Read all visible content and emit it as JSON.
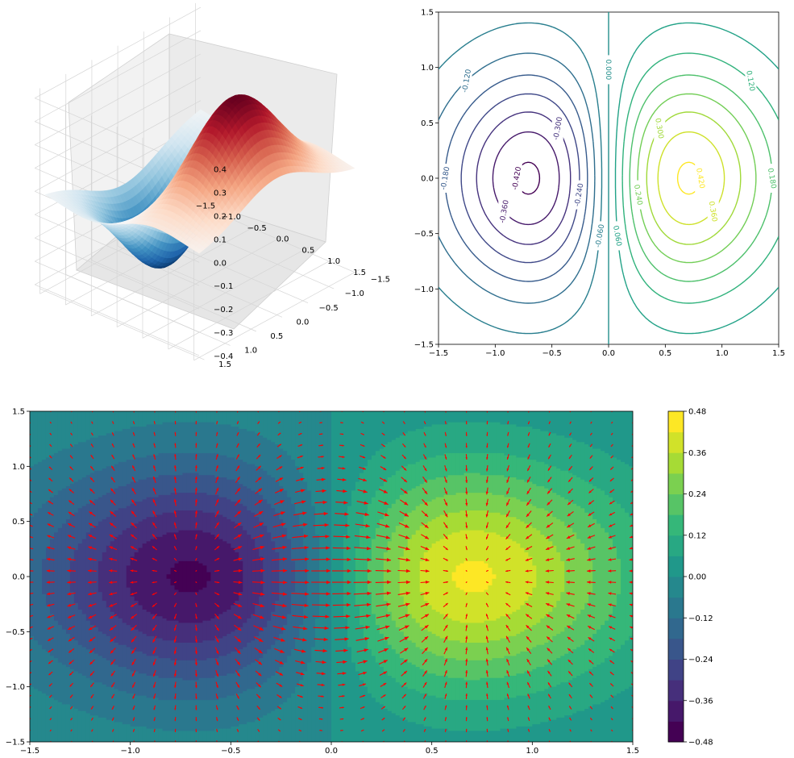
{
  "chart_data": [
    {
      "type": "surface3d",
      "title": "",
      "function": "z = x * exp(-x^2 - y^2)",
      "colormap": "RdBu_r",
      "x_ticks": [
        "−1.5",
        "−1.0",
        "−0.5",
        "0.0",
        "0.5",
        "1.0",
        "1.5"
      ],
      "y_ticks": [
        "−1.5",
        "−1.0",
        "−0.5",
        "0.0",
        "0.5",
        "1.0",
        "1.5"
      ],
      "z_ticks": [
        "−0.4",
        "−0.3",
        "−0.2",
        "−0.1",
        "0.0",
        "0.1",
        "0.2",
        "0.3",
        "0.4"
      ],
      "xlim": [
        -1.5,
        1.5
      ],
      "ylim": [
        -1.5,
        1.5
      ],
      "zlim": [
        -0.43,
        0.43
      ],
      "grid": true
    },
    {
      "type": "contour",
      "title": "",
      "function": "z = x * exp(-x^2 - y^2)",
      "colormap": "viridis",
      "levels": [
        -0.42,
        -0.36,
        -0.3,
        -0.24,
        -0.18,
        -0.12,
        -0.06,
        0.0,
        0.06,
        0.12,
        0.18,
        0.24,
        0.3,
        0.36,
        0.42
      ],
      "inline_labels": [
        "-0.420",
        "-0.360",
        "-0.300",
        "-0.240",
        "-0.180",
        "-0.120",
        "-0.060",
        "0.000",
        "0.060",
        "0.120",
        "0.180",
        "0.240",
        "0.300",
        "0.360",
        "0.420"
      ],
      "x_ticks": [
        "−1.5",
        "−1.0",
        "−0.5",
        "0.0",
        "0.5",
        "1.0",
        "1.5"
      ],
      "y_ticks": [
        "−1.5",
        "−1.0",
        "−0.5",
        "0.0",
        "0.5",
        "1.0",
        "1.5"
      ],
      "xlim": [
        -1.5,
        1.5
      ],
      "ylim": [
        -1.5,
        1.5
      ]
    },
    {
      "type": "contourf_quiver",
      "title": "",
      "function": "z = x * exp(-x^2 - y^2)",
      "vector_field": "gradient of z",
      "colormap": "viridis",
      "arrow_color": "#ff0000",
      "filled_levels": [
        -0.48,
        -0.42,
        -0.36,
        -0.3,
        -0.24,
        -0.18,
        -0.12,
        -0.06,
        0.0,
        0.06,
        0.12,
        0.18,
        0.24,
        0.3,
        0.36,
        0.42,
        0.48
      ],
      "colorbar_ticks": [
        "0.48",
        "0.36",
        "0.24",
        "0.12",
        "0.00",
        "−0.12",
        "−0.24",
        "−0.36",
        "−0.48"
      ],
      "x_ticks": [
        "−1.5",
        "−1.0",
        "−0.5",
        "0.0",
        "0.5",
        "1.0",
        "1.5"
      ],
      "y_ticks": [
        "−1.5",
        "−1.0",
        "−0.5",
        "0.0",
        "0.5",
        "1.0",
        "1.5"
      ],
      "xlim": [
        -1.5,
        1.5
      ],
      "ylim": [
        -1.5,
        1.5
      ]
    }
  ]
}
